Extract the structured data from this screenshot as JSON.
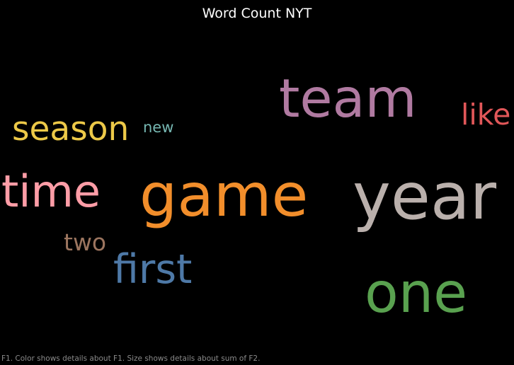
{
  "chart_data": {
    "type": "wordcloud",
    "title": "Word Count NYT",
    "color_field": "F1",
    "size_field": "F2",
    "words": [
      {
        "text": "year",
        "color": "#bab0ac"
      },
      {
        "text": "game",
        "color": "#f28e2b"
      },
      {
        "text": "one",
        "color": "#59a14f"
      },
      {
        "text": "team",
        "color": "#b07aa1"
      },
      {
        "text": "time",
        "color": "#ff9da7"
      },
      {
        "text": "first",
        "color": "#4e79a7"
      },
      {
        "text": "season",
        "color": "#edc948"
      },
      {
        "text": "like",
        "color": "#e15759"
      },
      {
        "text": "two",
        "color": "#9c755f"
      },
      {
        "text": "new",
        "color": "#76b7b2"
      }
    ]
  },
  "caption": "F1.  Color shows details about F1.  Size shows details about sum of F2."
}
